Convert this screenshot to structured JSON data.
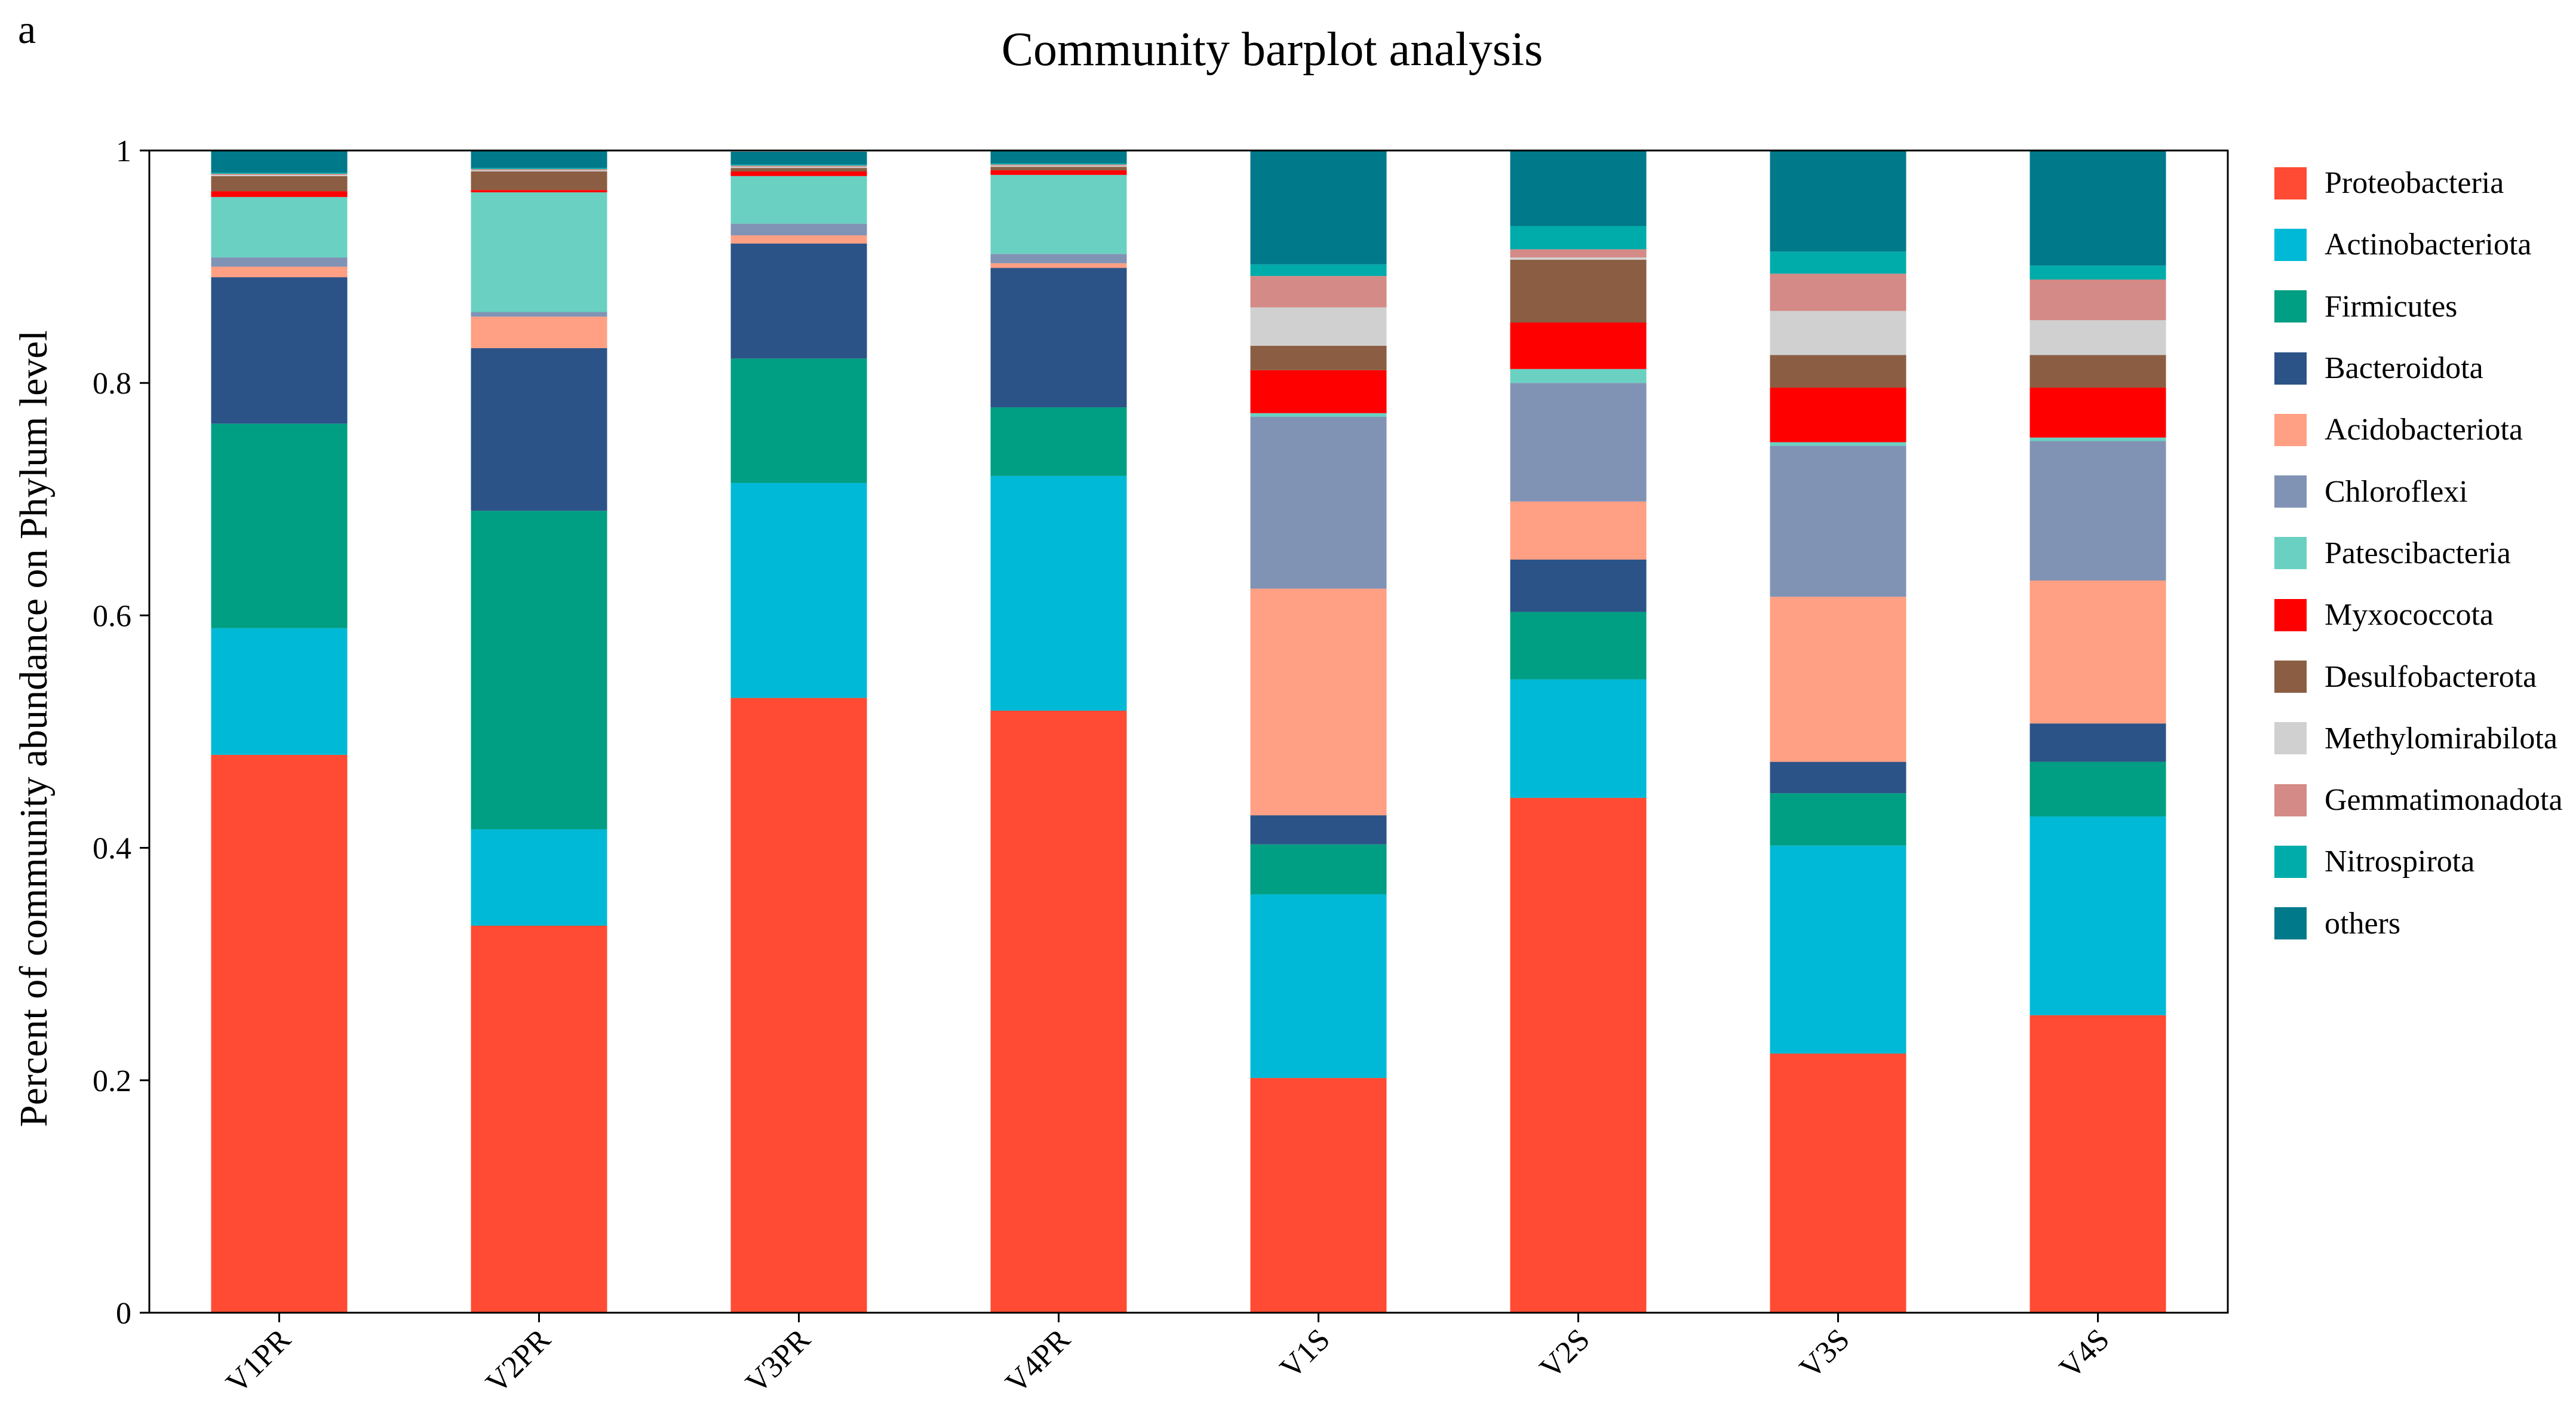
{
  "panel_label": "a",
  "chart_data": {
    "type": "bar",
    "stacked": true,
    "title": "Community barplot analysis",
    "xlabel": "",
    "ylabel": "Percent of community abundance on Phylum level",
    "ylim": [
      0,
      1
    ],
    "yticks": [
      "0",
      "0.2",
      "0.4",
      "0.6",
      "0.8",
      "1"
    ],
    "ytick_values": [
      0,
      0.2,
      0.4,
      0.6,
      0.8,
      1
    ],
    "legend_position": "right",
    "categories": [
      "V1PR",
      "V2PR",
      "V3PR",
      "V4PR",
      "V1S",
      "V2S",
      "V3S",
      "V4S"
    ],
    "series": [
      {
        "name": "Proteobacteria",
        "color": "#FF4B33",
        "values": [
          0.48,
          0.333,
          0.529,
          0.518,
          0.202,
          0.443,
          0.223,
          0.256
        ]
      },
      {
        "name": "Actinobacteriota",
        "color": "#00B9D6",
        "values": [
          0.109,
          0.083,
          0.185,
          0.202,
          0.158,
          0.102,
          0.179,
          0.171
        ]
      },
      {
        "name": "Firmicutes",
        "color": "#009E82",
        "values": [
          0.176,
          0.274,
          0.107,
          0.059,
          0.043,
          0.058,
          0.045,
          0.047
        ]
      },
      {
        "name": "Bacteroidota",
        "color": "#2C5387",
        "values": [
          0.126,
          0.14,
          0.099,
          0.12,
          0.025,
          0.045,
          0.027,
          0.033
        ]
      },
      {
        "name": "Acidobacteriota",
        "color": "#FF9F83",
        "values": [
          0.009,
          0.027,
          0.007,
          0.004,
          0.195,
          0.05,
          0.142,
          0.123
        ]
      },
      {
        "name": "Chloroflexi",
        "color": "#8193B5",
        "values": [
          0.008,
          0.004,
          0.01,
          0.008,
          0.148,
          0.102,
          0.13,
          0.12
        ]
      },
      {
        "name": "Patescibacteria",
        "color": "#6AD1C2",
        "values": [
          0.052,
          0.103,
          0.041,
          0.068,
          0.003,
          0.012,
          0.003,
          0.003
        ]
      },
      {
        "name": "Myxococcota",
        "color": "#FF0000",
        "values": [
          0.005,
          0.002,
          0.004,
          0.004,
          0.037,
          0.04,
          0.047,
          0.043
        ]
      },
      {
        "name": "Desulfobacterota",
        "color": "#8B5E43",
        "values": [
          0.013,
          0.016,
          0.003,
          0.003,
          0.021,
          0.054,
          0.028,
          0.028
        ]
      },
      {
        "name": "Methylomirabilota",
        "color": "#D0D0D0",
        "values": [
          0.001,
          0.001,
          0.001,
          0.001,
          0.033,
          0.002,
          0.038,
          0.03
        ]
      },
      {
        "name": "Gemmatimonadota",
        "color": "#D48A86",
        "values": [
          0.001,
          0.001,
          0.001,
          0.001,
          0.027,
          0.007,
          0.032,
          0.035
        ]
      },
      {
        "name": "Nitrospirota",
        "color": "#00ACAA",
        "values": [
          0.001,
          0.001,
          0.001,
          0.001,
          0.01,
          0.02,
          0.019,
          0.012
        ]
      },
      {
        "name": "others",
        "color": "#00798A",
        "values": [
          0.019,
          0.015,
          0.011,
          0.011,
          0.098,
          0.065,
          0.087,
          0.099
        ]
      }
    ]
  }
}
